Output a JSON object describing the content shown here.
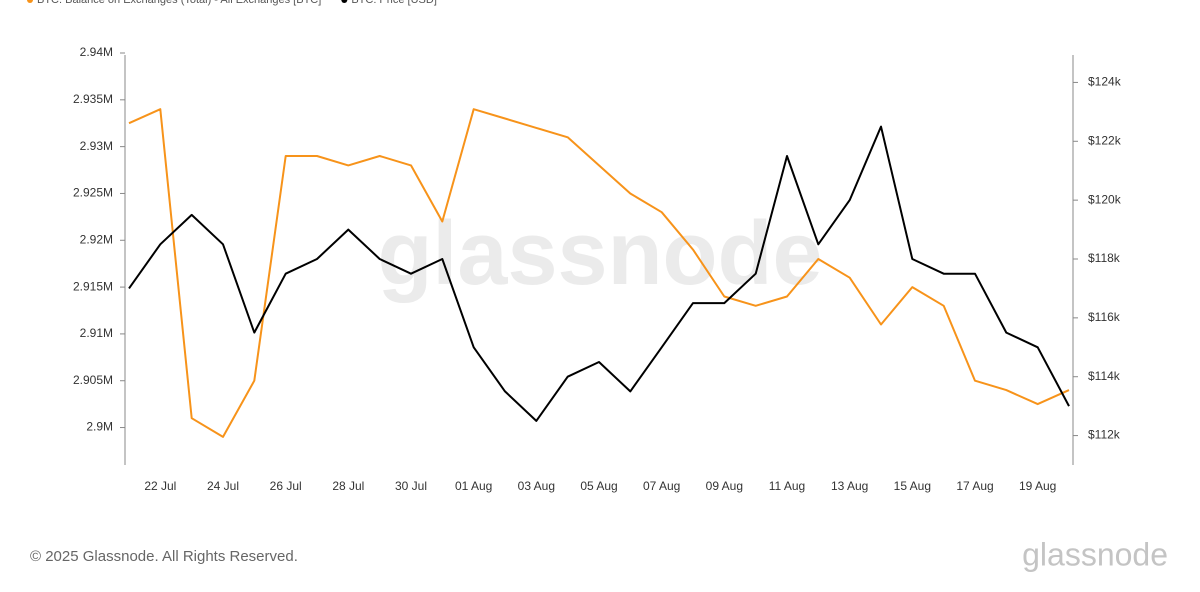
{
  "chart_data": {
    "type": "line",
    "watermark": "glassnode",
    "footer": "© 2025 Glassnode. All Rights Reserved.",
    "logo": "glassnode",
    "categories": [
      null,
      "22 Jul",
      null,
      "24 Jul",
      null,
      "26 Jul",
      null,
      "28 Jul",
      null,
      "30 Jul",
      null,
      "01 Aug",
      null,
      "03 Aug",
      null,
      "05 Aug",
      null,
      "07 Aug",
      null,
      "09 Aug",
      null,
      "11 Aug",
      null,
      "13 Aug",
      null,
      "15 Aug",
      null,
      "17 Aug",
      null,
      "19 Aug",
      null
    ],
    "series": [
      {
        "name": "BTC: Balance on Exchanges (Total) - All Exchanges [BTC]",
        "color": "#f7931a",
        "values": [
          2932500,
          2934000,
          2901000,
          2899000,
          2905000,
          2929000,
          2929000,
          2928000,
          2929000,
          2928000,
          2922000,
          2934000,
          2933000,
          2932000,
          2931000,
          2928000,
          2925000,
          2923000,
          2919000,
          2914000,
          2913000,
          2914000,
          2918000,
          2916000,
          2911000,
          2915000,
          2913000,
          2905000,
          2904000,
          2902500,
          2904000
        ]
      },
      {
        "name": "BTC: Price [USD]",
        "color": "#000000",
        "axis": "y2",
        "values": [
          117000,
          118500,
          119500,
          118500,
          115500,
          117500,
          118000,
          119000,
          118000,
          117500,
          118000,
          115000,
          113500,
          112500,
          114000,
          114500,
          113500,
          115000,
          116500,
          116500,
          117500,
          121500,
          118500,
          120000,
          122500,
          118000,
          117500,
          117500,
          115500,
          115000,
          113000
        ]
      }
    ],
    "ylim": [
      2896000,
      2940000
    ],
    "yticks": [
      {
        "value": 2900000,
        "label": "2.9M"
      },
      {
        "value": 2905000,
        "label": "2.905M"
      },
      {
        "value": 2910000,
        "label": "2.91M"
      },
      {
        "value": 2915000,
        "label": "2.915M"
      },
      {
        "value": 2920000,
        "label": "2.92M"
      },
      {
        "value": 2925000,
        "label": "2.925M"
      },
      {
        "value": 2930000,
        "label": "2.93M"
      },
      {
        "value": 2935000,
        "label": "2.935M"
      },
      {
        "value": 2940000,
        "label": "2.94M"
      }
    ],
    "y2lim": [
      111000,
      125000
    ],
    "y2ticks": [
      {
        "value": 112000,
        "label": "$112k"
      },
      {
        "value": 114000,
        "label": "$114k"
      },
      {
        "value": 116000,
        "label": "$116k"
      },
      {
        "value": 118000,
        "label": "$118k"
      },
      {
        "value": 120000,
        "label": "$120k"
      },
      {
        "value": 122000,
        "label": "$122k"
      },
      {
        "value": 124000,
        "label": "$124k"
      }
    ],
    "grid": false
  }
}
